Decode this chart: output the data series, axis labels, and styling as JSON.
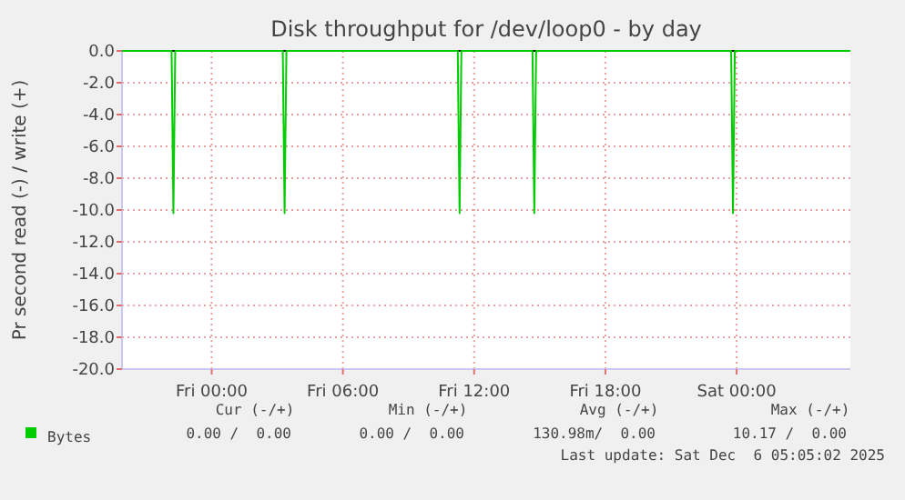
{
  "chart_data": {
    "type": "line",
    "title": "Disk throughput for /dev/loop0 - by day",
    "ylabel": "Pr second read (-) / write (+)",
    "x": [
      "2025-12-04T19:54",
      "2025-12-04T22:10",
      "2025-12-04T22:15",
      "2025-12-04T22:20",
      "2025-12-05T03:15",
      "2025-12-05T03:20",
      "2025-12-05T03:25",
      "2025-12-05T11:15",
      "2025-12-05T11:20",
      "2025-12-05T11:25",
      "2025-12-05T14:40",
      "2025-12-05T14:45",
      "2025-12-05T14:50",
      "2025-12-05T23:45",
      "2025-12-05T23:50",
      "2025-12-05T23:55",
      "2025-12-06T05:12"
    ],
    "series": [
      {
        "name": "Bytes",
        "color": "#00cc00",
        "values": [
          0,
          0,
          -10.2,
          0,
          0,
          -10.2,
          0,
          0,
          -10.2,
          0,
          0,
          -10.2,
          0,
          0,
          -10.2,
          0,
          0
        ]
      }
    ],
    "xlim": [
      "2025-12-04T19:54",
      "2025-12-06T05:12"
    ],
    "xticks": [
      {
        "value": "2025-12-05T00:00",
        "label": "Fri 00:00"
      },
      {
        "value": "2025-12-05T06:00",
        "label": "Fri 06:00"
      },
      {
        "value": "2025-12-05T12:00",
        "label": "Fri 12:00"
      },
      {
        "value": "2025-12-05T18:00",
        "label": "Fri 18:00"
      },
      {
        "value": "2025-12-06T00:00",
        "label": "Sat 00:00"
      }
    ],
    "ylim": [
      -20,
      0
    ],
    "yticks": [
      {
        "value": 0,
        "label": "0.0"
      },
      {
        "value": -2,
        "label": "-2.0"
      },
      {
        "value": -4,
        "label": "-4.0"
      },
      {
        "value": -6,
        "label": "-6.0"
      },
      {
        "value": -8,
        "label": "-8.0"
      },
      {
        "value": -10,
        "label": "-10.0"
      },
      {
        "value": -12,
        "label": "-12.0"
      },
      {
        "value": -14,
        "label": "-14.0"
      },
      {
        "value": -16,
        "label": "-16.0"
      },
      {
        "value": -18,
        "label": "-18.0"
      },
      {
        "value": -20,
        "label": "-20.0"
      }
    ],
    "ref_lines": [
      {
        "axis": "y",
        "value": 0,
        "color": "#000000"
      }
    ],
    "grid": true,
    "legend": "bottom left",
    "marker": "none",
    "line_style": "solid",
    "annotations": [
      "Cur (-/+)",
      "Min (-/+)",
      "Avg (-/+)",
      "Max (-/+)",
      "0.00 /  0.00",
      "0.00 /  0.00",
      "130.98m/  0.00",
      "10.17 /  0.00",
      "Last update: Sat Dec  6 05:05:02 2025"
    ]
  }
}
